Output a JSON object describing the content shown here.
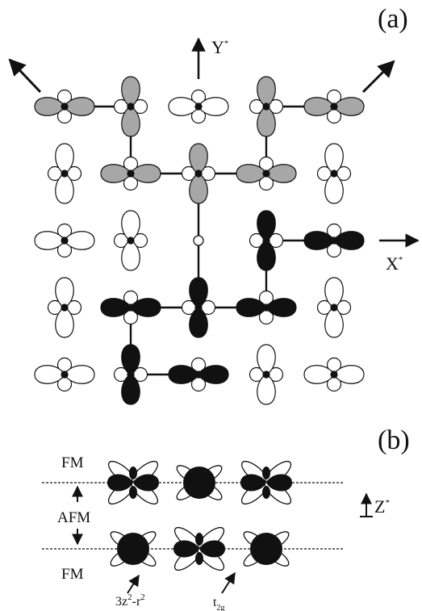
{
  "panel_a": {
    "label": "(a)"
  },
  "panel_b": {
    "label": "(b)"
  },
  "axes": {
    "y_label": "Y",
    "x_label": "X",
    "z_label": "Z",
    "star": "*"
  },
  "layers": {
    "top_label": "FM",
    "middle_label": "AFM",
    "bottom_label": "FM"
  },
  "orbitals": {
    "eg_label_main": "3z",
    "eg_label_sup": "2",
    "eg_label_tail": "-r",
    "eg_label_sup2": "2",
    "t2g_label_main": "t",
    "t2g_label_sub": "2g"
  },
  "colors": {
    "gray_fill": "#a7a7a7",
    "dark_fill": "#111111",
    "white_fill": "#ffffff",
    "line": "#111111"
  }
}
